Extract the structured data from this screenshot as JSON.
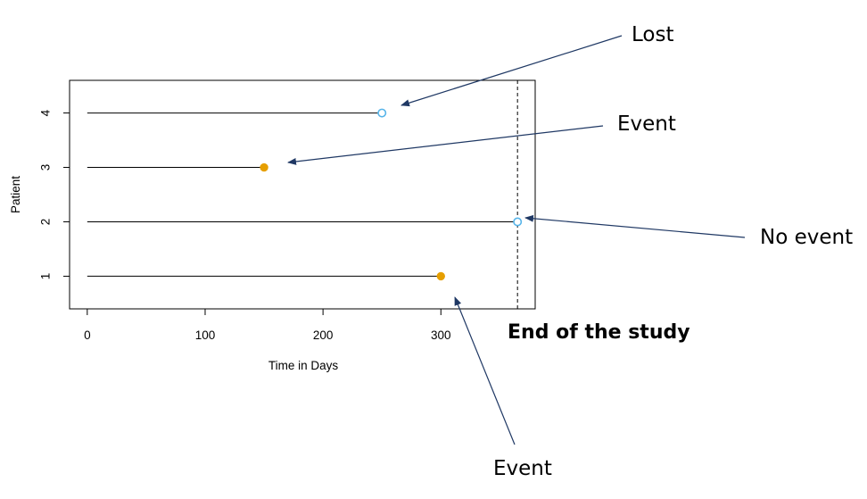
{
  "chart_data": {
    "type": "scatter",
    "xlabel": "Time in Days",
    "ylabel": "Patient",
    "xlim": [
      -15,
      380
    ],
    "ylim": [
      0.4,
      4.6
    ],
    "x_ticks": [
      "0",
      "100",
      "200",
      "300"
    ],
    "y_ticks": [
      "1",
      "2",
      "3",
      "4"
    ],
    "grid": false,
    "end_of_study_day": 365,
    "patients": [
      {
        "id": 1,
        "start": 0,
        "end": 300,
        "status": "event"
      },
      {
        "id": 2,
        "start": 0,
        "end": 365,
        "status": "no event"
      },
      {
        "id": 3,
        "start": 0,
        "end": 150,
        "status": "event"
      },
      {
        "id": 4,
        "start": 0,
        "end": 250,
        "status": "lost"
      }
    ],
    "colors": {
      "event": "#E69F00",
      "censored": "#56B4E9",
      "annotation_arrow": "#1F3864"
    }
  },
  "annotations": {
    "lost": "Lost",
    "event_top": "Event",
    "no_event": "No event",
    "end_of_study": "End of the study",
    "event_bottom": "Event"
  }
}
